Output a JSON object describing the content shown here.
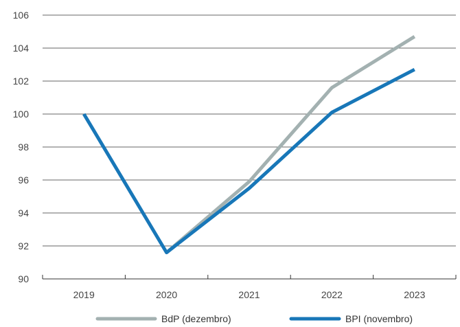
{
  "chart_data": {
    "type": "line",
    "title": "",
    "xlabel": "",
    "ylabel": "",
    "x": [
      "2019",
      "2020",
      "2021",
      "2022",
      "2023"
    ],
    "ylim": [
      90,
      106
    ],
    "yticks": [
      90,
      92,
      94,
      96,
      98,
      100,
      102,
      104,
      106
    ],
    "grid": true,
    "legend_position": "bottom",
    "series": [
      {
        "name": "BdP (dezembro)",
        "color": "#a3b1b1",
        "x": [
          "2020",
          "2021",
          "2022",
          "2023"
        ],
        "values": [
          91.6,
          95.9,
          101.6,
          104.7
        ]
      },
      {
        "name": "BPI (novembro)",
        "color": "#1877b8",
        "x": [
          "2019",
          "2020",
          "2021",
          "2022",
          "2023"
        ],
        "values": [
          100.0,
          91.6,
          95.5,
          100.1,
          102.7
        ]
      }
    ]
  }
}
